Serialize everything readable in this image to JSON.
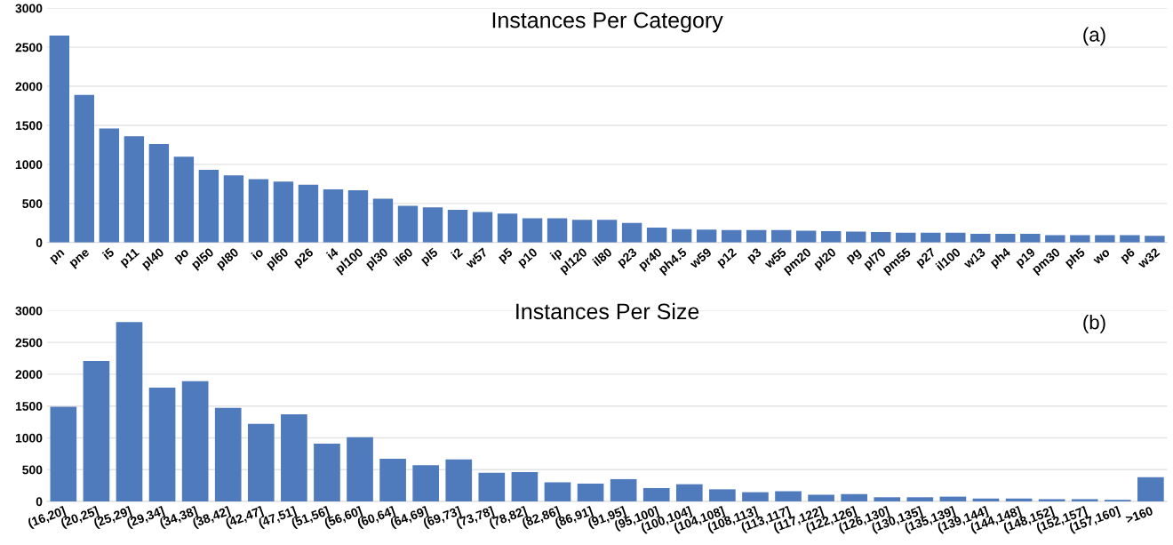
{
  "chart_data": [
    {
      "type": "bar",
      "title": "Instances Per Category",
      "annotations": [
        "(a)"
      ],
      "categories": [
        "pn",
        "pne",
        "i5",
        "p11",
        "pl40",
        "po",
        "pl50",
        "pl80",
        "io",
        "pl60",
        "p26",
        "i4",
        "pl100",
        "pl30",
        "il60",
        "pl5",
        "i2",
        "w57",
        "p5",
        "p10",
        "ip",
        "pl120",
        "il80",
        "p23",
        "pr40",
        "ph4.5",
        "w59",
        "p12",
        "p3",
        "w55",
        "pm20",
        "pl20",
        "pg",
        "pl70",
        "pm55",
        "p27",
        "il100",
        "w13",
        "ph4",
        "p19",
        "pm30",
        "ph5",
        "wo",
        "p6",
        "w32"
      ],
      "values": [
        2650,
        1890,
        1460,
        1360,
        1260,
        1100,
        930,
        860,
        810,
        780,
        740,
        680,
        670,
        560,
        470,
        450,
        420,
        390,
        370,
        310,
        310,
        290,
        290,
        250,
        190,
        170,
        165,
        160,
        160,
        160,
        150,
        145,
        140,
        135,
        125,
        125,
        125,
        110,
        110,
        110,
        95,
        95,
        95,
        95,
        85
      ],
      "color": "#4f7abc",
      "ylim": [
        0,
        3000
      ],
      "yticks": [
        0,
        500,
        1000,
        1500,
        2000,
        2500,
        3000
      ],
      "grid": "y",
      "legend": false
    },
    {
      "type": "bar",
      "title": "Instances Per Size",
      "annotations": [
        "(b)"
      ],
      "categories": [
        "(16,20]",
        "(20,25]",
        "(25,29]",
        "(29,34]",
        "(34,38]",
        "(38,42]",
        "(42,47]",
        "(47,51]",
        "(51,56]",
        "(56,60]",
        "(60,64]",
        "(64,69]",
        "(69,73]",
        "(73,78]",
        "(78,82]",
        "(82,86]",
        "(86,91]",
        "(91,95]",
        "(95,100]",
        "(100,104]",
        "(104,108]",
        "(108,113]",
        "(113,117]",
        "(117,122]",
        "(122,126]",
        "(126,130]",
        "(130,135]",
        "(135,139]",
        "(139,144]",
        "(144,148]",
        "(148,152]",
        "(152,157]",
        "(157,160]",
        ">160"
      ],
      "values": [
        1490,
        2210,
        2820,
        1790,
        1890,
        1470,
        1220,
        1370,
        910,
        1010,
        670,
        570,
        660,
        450,
        460,
        300,
        280,
        350,
        210,
        270,
        190,
        145,
        160,
        105,
        115,
        65,
        65,
        75,
        45,
        45,
        35,
        35,
        25,
        380
      ],
      "color": "#4f7abc",
      "ylim": [
        0,
        3000
      ],
      "yticks": [
        0,
        500,
        1000,
        1500,
        2000,
        2500,
        3000
      ],
      "grid": "y",
      "legend": false
    }
  ]
}
